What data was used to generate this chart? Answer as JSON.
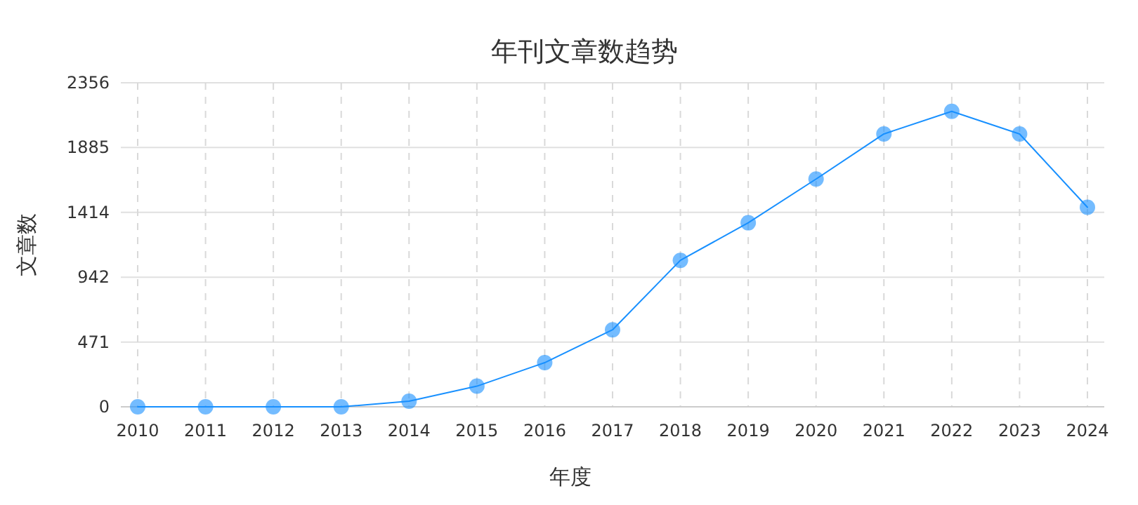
{
  "chart_data": {
    "type": "line",
    "title": "年刊文章数趋势",
    "xlabel": "年度",
    "ylabel": "文章数",
    "categories": [
      "2010",
      "2011",
      "2012",
      "2013",
      "2014",
      "2015",
      "2016",
      "2017",
      "2018",
      "2019",
      "2020",
      "2021",
      "2022",
      "2023",
      "2024"
    ],
    "series": [
      {
        "color": "#1890ff",
        "values": [
          0,
          0,
          0,
          0,
          41,
          150,
          321,
          560,
          1065,
          1338,
          1656,
          1984,
          2148,
          1984,
          1451
        ]
      }
    ],
    "ylim": [
      0,
      2356
    ],
    "yticks": [
      0,
      471,
      942,
      1414,
      1885,
      2356
    ],
    "grid": true,
    "marker": "circle",
    "line_style": "solid"
  }
}
